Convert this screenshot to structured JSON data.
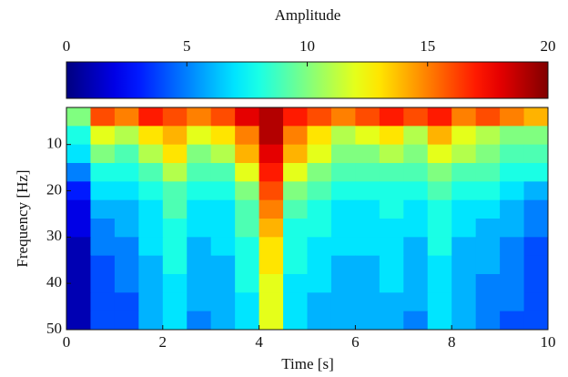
{
  "chart_data": {
    "type": "heatmap",
    "colorbar_label": "Amplitude",
    "colormap": "jet",
    "clim": [
      0,
      20
    ],
    "colorbar_ticks": [
      0,
      5,
      10,
      15,
      20
    ],
    "xlabel": "Time [s]",
    "ylabel": "Frequency [Hz]",
    "xlim": [
      0,
      10
    ],
    "xticks": [
      0,
      2,
      4,
      6,
      8,
      10
    ],
    "ylim": [
      50,
      2
    ],
    "yticks": [
      10,
      20,
      30,
      40,
      50
    ],
    "x": [
      0.25,
      0.75,
      1.25,
      1.75,
      2.25,
      2.75,
      3.25,
      3.75,
      4.25,
      4.75,
      5.25,
      5.75,
      6.25,
      6.75,
      7.25,
      7.75,
      8.25,
      8.75,
      9.25,
      9.75
    ],
    "y": [
      4,
      8,
      12,
      16,
      20,
      24,
      28,
      32,
      36,
      40,
      44,
      48
    ],
    "z": [
      [
        10,
        16,
        15,
        17,
        16,
        15,
        16,
        18,
        19,
        17,
        16,
        15,
        16,
        17,
        16,
        17,
        15,
        16,
        15,
        14
      ],
      [
        8,
        12,
        11,
        13,
        14,
        12,
        13,
        15,
        19,
        15,
        13,
        11,
        12,
        13,
        11,
        14,
        12,
        11,
        10,
        10
      ],
      [
        7,
        10,
        9,
        11,
        13,
        10,
        11,
        14,
        18,
        14,
        12,
        10,
        10,
        11,
        10,
        12,
        11,
        10,
        9,
        9
      ],
      [
        5,
        8,
        8,
        9,
        11,
        9,
        9,
        12,
        17,
        12,
        10,
        9,
        9,
        9,
        9,
        10,
        9,
        9,
        8,
        8
      ],
      [
        3,
        7,
        7,
        8,
        9,
        8,
        8,
        10,
        16,
        10,
        9,
        8,
        8,
        8,
        8,
        9,
        8,
        8,
        7,
        6
      ],
      [
        2,
        6,
        6,
        7,
        9,
        7,
        7,
        9,
        15,
        9,
        8,
        7,
        7,
        8,
        7,
        8,
        7,
        7,
        6,
        5
      ],
      [
        2,
        5,
        6,
        7,
        8,
        7,
        7,
        9,
        14,
        8,
        8,
        7,
        7,
        7,
        7,
        8,
        7,
        6,
        6,
        5
      ],
      [
        1,
        5,
        5,
        7,
        8,
        6,
        7,
        8,
        13,
        8,
        7,
        7,
        7,
        7,
        6,
        8,
        6,
        6,
        5,
        4
      ],
      [
        1,
        4,
        5,
        6,
        8,
        6,
        6,
        8,
        13,
        8,
        7,
        6,
        6,
        7,
        6,
        7,
        6,
        6,
        5,
        4
      ],
      [
        1,
        4,
        5,
        6,
        7,
        6,
        6,
        8,
        12,
        7,
        7,
        6,
        6,
        7,
        6,
        7,
        6,
        5,
        5,
        4
      ],
      [
        1,
        4,
        4,
        6,
        7,
        6,
        6,
        7,
        12,
        7,
        6,
        6,
        6,
        6,
        6,
        7,
        6,
        5,
        5,
        4
      ],
      [
        1,
        4,
        4,
        6,
        7,
        5,
        6,
        7,
        12,
        7,
        6,
        6,
        6,
        6,
        5,
        7,
        6,
        5,
        4,
        4
      ]
    ]
  }
}
